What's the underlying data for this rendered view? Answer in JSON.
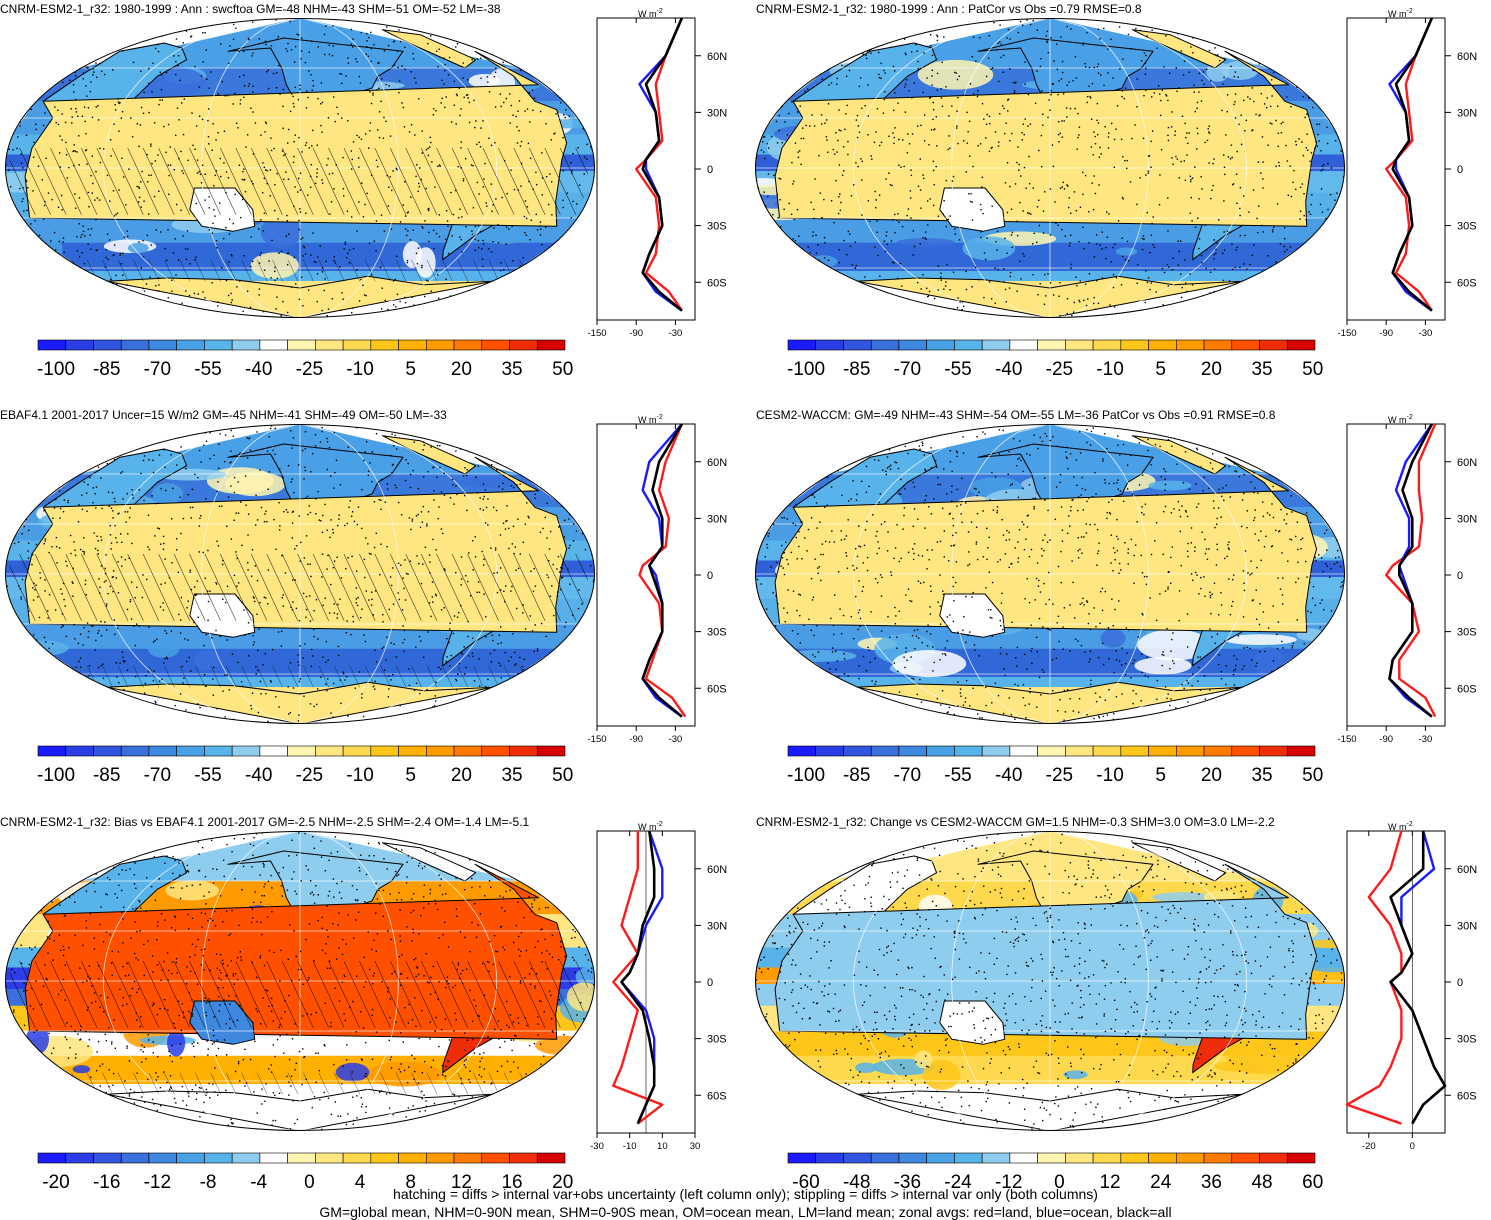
{
  "colorbar_colors": {
    "pos": [
      "#1a1aff",
      "#2a3de6",
      "#3255e0",
      "#3a70dc",
      "#3f88df",
      "#48a0e5",
      "#58b3ea",
      "#8fcdef",
      "#ffffff",
      "#fff4b0",
      "#ffe680",
      "#ffd94d",
      "#ffc61a",
      "#ffb000",
      "#ff9a00",
      "#ff7a00",
      "#ff5000",
      "#f02d0a",
      "#d60000"
    ],
    "div": [
      "#1a1aff",
      "#2a3de6",
      "#3255e0",
      "#3a70dc",
      "#3f88df",
      "#48a0e5",
      "#58b3ea",
      "#8fcdef",
      "#ffffff",
      "#fff4b0",
      "#ffe680",
      "#ffd94d",
      "#ffc61a",
      "#ffb000",
      "#ff9a00",
      "#ff7a00",
      "#ff5000",
      "#f02d0a",
      "#d60000"
    ]
  },
  "line_colors": {
    "land": "#ff1a1a",
    "ocean": "#1a1aff",
    "all": "#000000"
  },
  "zonal_lat_ticks": [
    "60N",
    "30N",
    "0",
    "30S",
    "60S"
  ],
  "units_label": "W m",
  "units_exp": "-2",
  "panels": [
    {
      "title": "CNRM-ESM2-1_r32: 1980-1999 : Ann : swcftoa GM=-48 NHM=-43 SHM=-51 OM=-52 LM=-38",
      "map_style": "abs",
      "hatching": true,
      "colorbar_labels": [
        "-100",
        "-85",
        "-70",
        "-55",
        "-40",
        "-25",
        "-10",
        "5",
        "20",
        "35",
        "50"
      ],
      "zonal_xticks": [
        "-150",
        "-90",
        "-30"
      ],
      "zonal_xrange": [
        -150,
        0
      ]
    },
    {
      "title": "CNRM-ESM2-1_r32: 1980-1999 : Ann : PatCor vs Obs =0.79 RMSE=0.8",
      "map_style": "abs",
      "hatching": false,
      "colorbar_labels": [
        "-100",
        "-85",
        "-70",
        "-55",
        "-40",
        "-25",
        "-10",
        "5",
        "20",
        "35",
        "50"
      ],
      "zonal_xticks": [
        "-150",
        "-90",
        "-30"
      ],
      "zonal_xrange": [
        -150,
        0
      ]
    },
    {
      "title": "EBAF4.1 2001-2017 Uncer=15 W/m2 GM=-45 NHM=-41 SHM=-49 OM=-50 LM=-33",
      "map_style": "abs",
      "hatching": true,
      "colorbar_labels": [
        "-100",
        "-85",
        "-70",
        "-55",
        "-40",
        "-25",
        "-10",
        "5",
        "20",
        "35",
        "50"
      ],
      "zonal_xticks": [
        "-150",
        "-90",
        "-30"
      ],
      "zonal_xrange": [
        -150,
        0
      ]
    },
    {
      "title": "CESM2-WACCM: GM=-49 NHM=-43 SHM=-54 OM=-55 LM=-36 PatCor vs Obs =0.91 RMSE=0.8",
      "map_style": "abs",
      "hatching": false,
      "colorbar_labels": [
        "-100",
        "-85",
        "-70",
        "-55",
        "-40",
        "-25",
        "-10",
        "5",
        "20",
        "35",
        "50"
      ],
      "zonal_xticks": [
        "-150",
        "-90",
        "-30"
      ],
      "zonal_xrange": [
        -150,
        0
      ]
    },
    {
      "title": "CNRM-ESM2-1_r32: Bias vs EBAF4.1 2001-2017 GM=-2.5 NHM=-2.5 SHM=-2.4 OM=-1.4 LM=-5.1",
      "map_style": "bias",
      "hatching": true,
      "colorbar_labels": [
        "-20",
        "-16",
        "-12",
        "-8",
        "-4",
        "0",
        "4",
        "8",
        "12",
        "16",
        "20"
      ],
      "zonal_xticks": [
        "-30",
        "-10",
        "10",
        "30"
      ],
      "zonal_xrange": [
        -30,
        30
      ]
    },
    {
      "title": "CNRM-ESM2-1_r32: Change vs CESM2-WACCM GM=1.5 NHM=-0.3 SHM=3.0 OM=3.0 LM=-2.2",
      "map_style": "change",
      "hatching": false,
      "colorbar_labels": [
        "-60",
        "-48",
        "-36",
        "-24",
        "-12",
        "0",
        "12",
        "24",
        "36",
        "48",
        "60"
      ],
      "zonal_xticks": [
        "-20",
        "0"
      ],
      "zonal_xrange": [
        -30,
        15
      ]
    }
  ],
  "footnote_lines": [
    "hatching = diffs > internal var+obs uncertainty (left column only); stippling = diffs > internal var only (both columns)",
    "GM=global mean, NHM=0-90N mean, SHM=0-90S mean, OM=ocean mean, LM=land mean; zonal avgs: red=land, blue=ocean, black=all"
  ],
  "chart_data": [
    {
      "type": "heatmap",
      "title": "CNRM-ESM2-1_r32: 1980-1999 : Ann : swcftoa GM=-48 NHM=-43 SHM=-51 OM=-52 LM=-38",
      "colorbar_range": [
        -100,
        50
      ],
      "zonal_mean": {
        "lat": [
          80,
          60,
          45,
          30,
          15,
          5,
          0,
          -15,
          -30,
          -45,
          -55,
          -65,
          -75
        ],
        "land": [
          -20,
          -45,
          -60,
          -55,
          -50,
          -75,
          -90,
          -60,
          -55,
          -60,
          -75,
          -40,
          -20
        ],
        "ocean": [
          -20,
          -45,
          -85,
          -60,
          -55,
          -75,
          -75,
          -55,
          -50,
          -70,
          -80,
          -60,
          -20
        ],
        "all": [
          -20,
          -45,
          -75,
          -60,
          -55,
          -75,
          -80,
          -55,
          -50,
          -70,
          -80,
          -55,
          -20
        ]
      }
    },
    {
      "type": "heatmap",
      "title": "CNRM-ESM2-1_r32: 1980-1999 : Ann : PatCor vs Obs =0.79 RMSE=0.8",
      "colorbar_range": [
        -100,
        50
      ],
      "zonal_mean": {
        "lat": [
          80,
          60,
          45,
          30,
          15,
          5,
          0,
          -15,
          -30,
          -45,
          -55,
          -65,
          -75
        ],
        "land": [
          -20,
          -45,
          -60,
          -55,
          -50,
          -75,
          -90,
          -60,
          -55,
          -60,
          -75,
          -40,
          -20
        ],
        "ocean": [
          -20,
          -45,
          -85,
          -60,
          -55,
          -75,
          -75,
          -55,
          -50,
          -70,
          -80,
          -60,
          -20
        ],
        "all": [
          -20,
          -45,
          -75,
          -60,
          -55,
          -75,
          -80,
          -55,
          -50,
          -70,
          -80,
          -55,
          -20
        ]
      }
    },
    {
      "type": "heatmap",
      "title": "EBAF4.1 2001-2017 Uncer=15 W/m2 GM=-45 NHM=-41 SHM=-49 OM=-50 LM=-33",
      "colorbar_range": [
        -100,
        50
      ],
      "zonal_mean": {
        "lat": [
          80,
          60,
          45,
          30,
          15,
          5,
          0,
          -15,
          -30,
          -45,
          -55,
          -65,
          -75
        ],
        "land": [
          -20,
          -45,
          -55,
          -40,
          -45,
          -80,
          -85,
          -55,
          -50,
          -65,
          -75,
          -35,
          -15
        ],
        "ocean": [
          -20,
          -70,
          -80,
          -55,
          -50,
          -70,
          -60,
          -50,
          -50,
          -70,
          -80,
          -60,
          -20
        ],
        "all": [
          -20,
          -55,
          -65,
          -50,
          -50,
          -70,
          -65,
          -50,
          -50,
          -70,
          -80,
          -55,
          -20
        ]
      }
    },
    {
      "type": "heatmap",
      "title": "CESM2-WACCM: GM=-49 NHM=-43 SHM=-54 OM=-55 LM=-36 PatCor vs Obs =0.91 RMSE=0.8",
      "colorbar_range": [
        -100,
        50
      ],
      "zonal_mean": {
        "lat": [
          80,
          60,
          45,
          30,
          15,
          5,
          0,
          -15,
          -30,
          -45,
          -55,
          -65,
          -75
        ],
        "land": [
          -15,
          -40,
          -40,
          -35,
          -40,
          -80,
          -90,
          -50,
          -40,
          -70,
          -70,
          -30,
          -15
        ],
        "ocean": [
          -20,
          -60,
          -75,
          -55,
          -55,
          -70,
          -65,
          -50,
          -50,
          -80,
          -85,
          -60,
          -20
        ],
        "all": [
          -20,
          -50,
          -65,
          -50,
          -50,
          -70,
          -70,
          -50,
          -50,
          -80,
          -85,
          -55,
          -20
        ]
      }
    },
    {
      "type": "heatmap",
      "title": "CNRM-ESM2-1_r32: Bias vs EBAF4.1 2001-2017 GM=-2.5 NHM=-2.5 SHM=-2.4 OM=-1.4 LM=-5.1",
      "colorbar_range": [
        -20,
        20
      ],
      "zonal_mean": {
        "lat": [
          80,
          60,
          45,
          30,
          15,
          5,
          0,
          -15,
          -30,
          -45,
          -55,
          -65,
          -75
        ],
        "land": [
          -5,
          -5,
          -10,
          -15,
          -5,
          -15,
          -20,
          -5,
          -10,
          -15,
          -20,
          10,
          -5
        ],
        "ocean": [
          2,
          10,
          10,
          0,
          -5,
          -10,
          -15,
          0,
          5,
          5,
          5,
          0,
          -5
        ],
        "all": [
          2,
          5,
          5,
          -2,
          -5,
          -10,
          -15,
          -2,
          2,
          5,
          5,
          0,
          -5
        ]
      }
    },
    {
      "type": "heatmap",
      "title": "CNRM-ESM2-1_r32: Change vs CESM2-WACCM GM=1.5 NHM=-0.3 SHM=3.0 OM=3.0 LM=-2.2",
      "colorbar_range": [
        -60,
        60
      ],
      "zonal_mean": {
        "lat": [
          80,
          60,
          45,
          30,
          15,
          5,
          0,
          -15,
          -30,
          -45,
          -55,
          -65,
          -75
        ],
        "land": [
          -5,
          -10,
          -20,
          -10,
          -5,
          -5,
          -10,
          -5,
          -5,
          -10,
          -15,
          -30,
          -5
        ],
        "ocean": [
          5,
          10,
          -5,
          -5,
          0,
          -5,
          -10,
          0,
          5,
          10,
          15,
          5,
          0
        ],
        "all": [
          5,
          5,
          -10,
          -5,
          0,
          -5,
          -10,
          0,
          5,
          10,
          15,
          5,
          0
        ]
      }
    }
  ]
}
